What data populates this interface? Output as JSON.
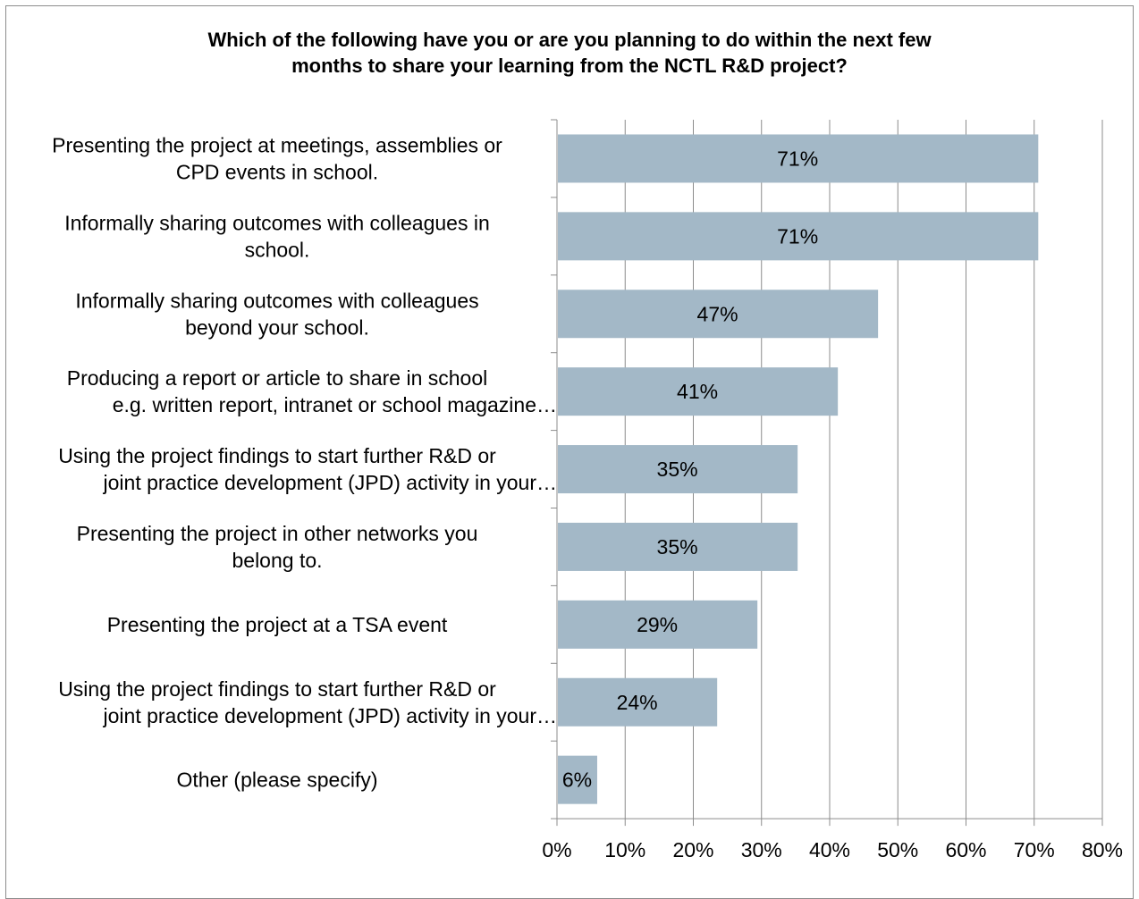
{
  "chart_data": {
    "type": "bar",
    "orientation": "horizontal",
    "title_lines": [
      "Which of the following have you or are you planning to do within the next few",
      "months to share your learning from the NCTL R&D project?"
    ],
    "categories": [
      [
        "Presenting the project at meetings, assemblies or",
        "CPD events in school."
      ],
      [
        "Informally sharing outcomes with colleagues in",
        "school."
      ],
      [
        "Informally sharing outcomes with colleagues",
        "beyond your school."
      ],
      [
        "Producing a report or article to share in school",
        "e.g. written report, intranet or school magazine…"
      ],
      [
        "Using the project findings to start further R&D or",
        "joint practice development (JPD) activity in your…"
      ],
      [
        "Presenting the project in other networks you",
        "belong to."
      ],
      [
        "Presenting the project at a TSA event"
      ],
      [
        "Using the project findings to start further R&D or",
        "joint practice development (JPD) activity in your…"
      ],
      [
        "Other (please specify)"
      ]
    ],
    "values": [
      70.6,
      70.6,
      47.1,
      41.2,
      35.3,
      35.3,
      29.4,
      23.5,
      5.9
    ],
    "value_labels": [
      "71%",
      "71%",
      "47%",
      "41%",
      "35%",
      "35%",
      "29%",
      "24%",
      "6%"
    ],
    "x_ticks": [
      "0%",
      "10%",
      "20%",
      "30%",
      "40%",
      "50%",
      "60%",
      "70%",
      "80%"
    ],
    "xlim": [
      0,
      80
    ],
    "grid": true,
    "colors": {
      "bar": "#a3b8c7",
      "grid": "#8c8c8c",
      "axis": "#8c8c8c"
    }
  }
}
